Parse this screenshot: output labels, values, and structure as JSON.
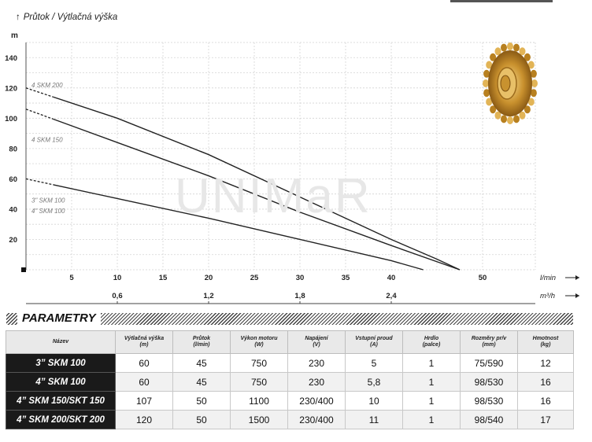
{
  "chart_data": {
    "type": "line",
    "title": "Průtok / Výtlačná výška",
    "ylabel": "m",
    "xlabel": "l/min",
    "x2label": "m³/h",
    "xlim": [
      0,
      50
    ],
    "ylim": [
      0,
      150
    ],
    "xticks": [
      5,
      10,
      15,
      20,
      25,
      30,
      35,
      40,
      50
    ],
    "yticks": [
      20,
      40,
      60,
      80,
      100,
      120,
      140
    ],
    "x2ticks": [
      {
        "label": "0,6",
        "at": 10
      },
      {
        "label": "1,2",
        "at": 20
      },
      {
        "label": "1,8",
        "at": 30
      },
      {
        "label": "2,4",
        "at": 40
      }
    ],
    "grid": true,
    "series": [
      {
        "name": "4 SKM 200",
        "label_y": 122,
        "dash_to_x": 3,
        "points": [
          [
            0,
            120
          ],
          [
            10,
            100
          ],
          [
            20,
            76
          ],
          [
            30,
            48
          ],
          [
            40,
            20
          ],
          [
            45,
            7
          ],
          [
            47.5,
            0
          ]
        ]
      },
      {
        "name": "4 SKM 150",
        "label_y": 86,
        "dash_to_x": 3,
        "points": [
          [
            0,
            106
          ],
          [
            10,
            84
          ],
          [
            20,
            62
          ],
          [
            30,
            38
          ],
          [
            40,
            16
          ],
          [
            47.5,
            0
          ]
        ]
      },
      {
        "name": "3\" SKM 100",
        "label_y": 46,
        "dash_to_x": 3,
        "points": [
          [
            0,
            60
          ],
          [
            10,
            47
          ],
          [
            20,
            34
          ],
          [
            30,
            20
          ],
          [
            40,
            6
          ],
          [
            43.5,
            0
          ]
        ]
      },
      {
        "name": "4\" SKM 100",
        "label_y": 39,
        "dash_to_x": null,
        "points": []
      }
    ]
  },
  "watermark": "UNIMaR",
  "parametry": {
    "title": "PARAMETRY",
    "headers": [
      [
        "Název"
      ],
      [
        "Výtlačná výška",
        "(m)"
      ],
      [
        "Průtok",
        "(l/min)"
      ],
      [
        "Výkon motoru",
        "(W)"
      ],
      [
        "Napájení",
        "(V)"
      ],
      [
        "Vstupní proud",
        "(A)"
      ],
      [
        "Hrdlo",
        "(palce)"
      ],
      [
        "Rozměry pr/v",
        "(mm)"
      ],
      [
        "Hmotnost",
        "(kg)"
      ]
    ],
    "rows": [
      [
        "3” SKM 100",
        "60",
        "45",
        "750",
        "230",
        "5",
        "1",
        "75/590",
        "12"
      ],
      [
        "4” SKM 100",
        "60",
        "45",
        "750",
        "230",
        "5,8",
        "1",
        "98/530",
        "16"
      ],
      [
        "4” SKM 150/SKT 150",
        "107",
        "50",
        "1100",
        "230/400",
        "10",
        "1",
        "98/530",
        "16"
      ],
      [
        "4” SKM 200/SKT 200",
        "120",
        "50",
        "1500",
        "230/400",
        "11",
        "1",
        "98/540",
        "17"
      ]
    ]
  }
}
